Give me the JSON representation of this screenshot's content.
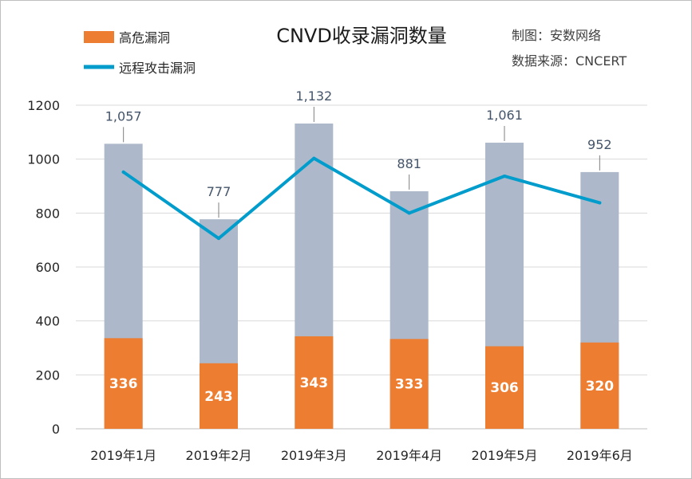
{
  "title": "CNVD收录漏洞数量",
  "credit": "制图：安数网络",
  "source": "数据来源：CNCERT",
  "colors": {
    "high": "#ed7d31",
    "total": "#adb9ca",
    "line": "#009ccc",
    "grid": "#d9d9d9",
    "axis": "#bfbfbf",
    "leader": "#7f7f7f"
  },
  "legend": {
    "high": "高危漏洞",
    "line": "远程攻击漏洞"
  },
  "chart_data": {
    "type": "bar",
    "categories": [
      "2019年1月",
      "2019年2月",
      "2019年3月",
      "2019年4月",
      "2019年5月",
      "2019年6月"
    ],
    "series": [
      {
        "name": "高危漏洞",
        "kind": "bar",
        "values": [
          336,
          243,
          343,
          333,
          306,
          320
        ]
      },
      {
        "kind": "bar",
        "values": [
          1057,
          777,
          1132,
          881,
          1061,
          952
        ]
      },
      {
        "name": "远程攻击漏洞",
        "kind": "line",
        "values": [
          952,
          706,
          1003,
          800,
          937,
          838
        ]
      }
    ],
    "total_labels": [
      "1,057",
      "777",
      "1,132",
      "881",
      "1,061",
      "952"
    ],
    "high_labels": [
      "336",
      "243",
      "343",
      "333",
      "306",
      "320"
    ],
    "ylim": [
      0,
      1200
    ],
    "yticks": [
      0,
      200,
      400,
      600,
      800,
      1000,
      1200
    ],
    "grid": true,
    "legend_position": "top-left"
  }
}
